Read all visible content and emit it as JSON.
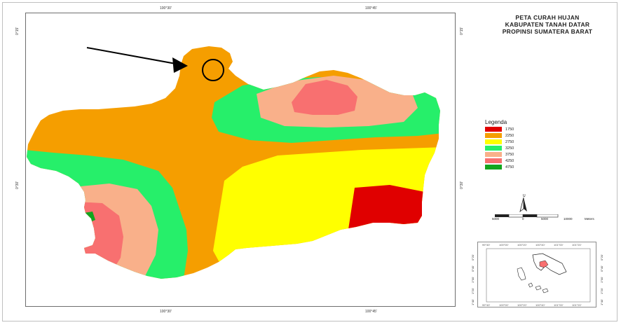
{
  "map": {
    "title_lines": [
      "PETA CURAH HUJAN",
      "KABUPATEN TANAH DATAR",
      "PROPINSI SUMATERA BARAT"
    ],
    "top_tick_labels": [
      "100°30'",
      "100°45'"
    ],
    "bottom_tick_labels": [
      "100°30'",
      "100°45'"
    ],
    "left_tick_labels": [
      "0°15'",
      "0°30'"
    ],
    "right_tick_labels": [
      "0°15'",
      "0°30'"
    ]
  },
  "legend": {
    "title": "Legenda",
    "items": [
      {
        "label": "1750",
        "color": "#e00000"
      },
      {
        "label": "2250",
        "color": "#f59e00"
      },
      {
        "label": "2750",
        "color": "#ffff00"
      },
      {
        "label": "3250",
        "color": "#26ef6a"
      },
      {
        "label": "3750",
        "color": "#f9b08a"
      },
      {
        "label": "4250",
        "color": "#f87070"
      },
      {
        "label": "4750",
        "color": "#13a51e"
      }
    ]
  },
  "north_arrow": {
    "letter": "U"
  },
  "scale": {
    "labels": [
      "5000",
      "0",
      "5000",
      "10000",
      "Meters"
    ]
  },
  "inset_map": {
    "top_ticks": [
      "99°40'",
      "100°00'",
      "100°20'",
      "100°40'",
      "101°00'",
      "101°20'"
    ],
    "bottom_ticks": [
      "99°40'",
      "100°00'",
      "100°20'",
      "100°40'",
      "101°00'",
      "101°20'"
    ],
    "left_ticks": [
      "0°20'",
      "0°40'",
      "1°00'",
      "1°20'",
      "1°40'"
    ],
    "right_ticks": [
      "0°20'",
      "0°40'",
      "1°00'",
      "1°20'",
      "1°40'"
    ]
  },
  "annotation": {
    "type": "arrow-with-circle",
    "meaning": "highlighted location"
  },
  "colors": {
    "frame": "#6e6e6e",
    "orange": "#f59e00",
    "yellow": "#ffff00",
    "green": "#26ef6a",
    "salmon": "#f9b08a",
    "pink": "#f87070",
    "red": "#e00000",
    "darkgreen": "#13a51e"
  }
}
